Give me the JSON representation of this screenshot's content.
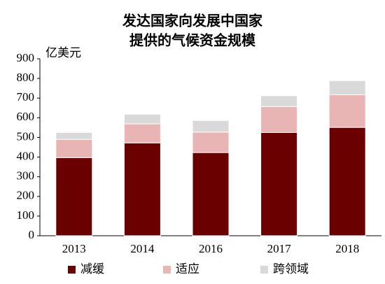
{
  "chart_data": {
    "type": "stacked_bar",
    "title": [
      "发达国家向发展中国家",
      "提供的气候资金规模"
    ],
    "y_axis_label": "亿美元",
    "categories": [
      "2013",
      "2014",
      "2016",
      "2017",
      "2018"
    ],
    "series": [
      {
        "name": "减缓",
        "color": "#6b0000",
        "values": [
          397,
          472,
          423,
          525,
          551
        ]
      },
      {
        "name": "适应",
        "color": "#e8b4b4",
        "values": [
          93,
          97,
          104,
          132,
          166
        ]
      },
      {
        "name": "跨领域",
        "color": "#d9d9d9",
        "values": [
          35,
          49,
          59,
          55,
          72
        ]
      }
    ],
    "ylim": [
      0,
      900
    ],
    "yticks": [
      0,
      100,
      200,
      300,
      400,
      500,
      600,
      700,
      800,
      900
    ],
    "grid": false,
    "legend": "bottom"
  }
}
